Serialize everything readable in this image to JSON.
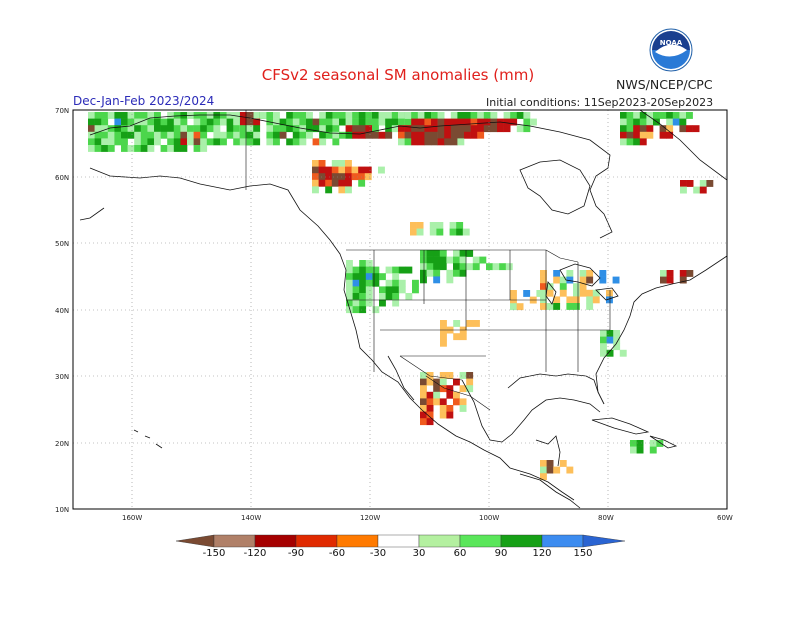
{
  "title": "CFSv2 seasonal SM anomalies (mm)",
  "agency": "NWS/NCEP/CPC",
  "season": "Dec-Jan-Feb 2023/2024",
  "initial_conditions": "Initial conditions: 11Sep2023-20Sep2023",
  "logo_text": "NOAA",
  "lat_labels": [
    "70N",
    "60N",
    "50N",
    "40N",
    "30N",
    "20N",
    "10N"
  ],
  "lon_labels": [
    "160W",
    "140W",
    "120W",
    "100W",
    "80W",
    "60W"
  ],
  "colorbar": {
    "labels": [
      "-150",
      "-120",
      "-90",
      "-60",
      "-30",
      "30",
      "60",
      "90",
      "120",
      "150"
    ],
    "colors": [
      "#7a4a32",
      "#b08068",
      "#a50000",
      "#e02a00",
      "#ff7a00",
      "#ffb63c",
      "#ffffff",
      "#b4f0a0",
      "#5ae65a",
      "#16a016",
      "#1a8a3c",
      "#3c8cf0",
      "#2a64d2"
    ]
  },
  "colors": {
    "title": "#e0201c",
    "season": "#2b2bb8",
    "dry_strong": "#7a4a32",
    "dry": "#c01010",
    "dry_mid": "#f05a1e",
    "dry_weak": "#fdbf5a",
    "wet_weak": "#aaf0aa",
    "wet_mid": "#4cd64c",
    "wet": "#16a016",
    "wet_strong": "#2f8fe6"
  }
}
